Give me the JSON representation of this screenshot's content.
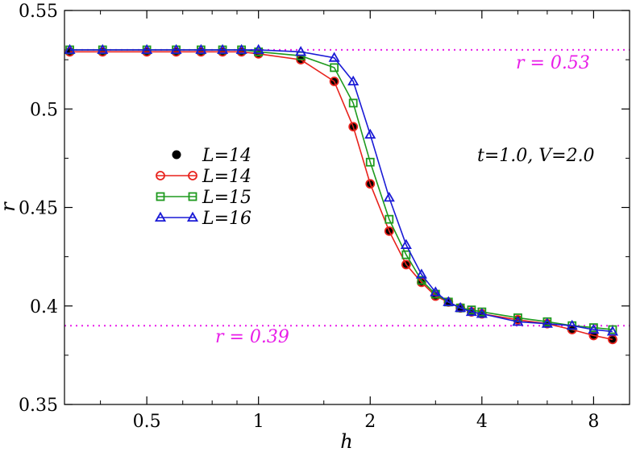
{
  "chart_data": {
    "type": "line",
    "xlabel": "h",
    "ylabel": "r",
    "xscale": "log2",
    "xlim": [
      0.3,
      10.0
    ],
    "ylim": [
      0.35,
      0.55
    ],
    "xticks": [
      {
        "value": 0.5,
        "label": "0.5"
      },
      {
        "value": 1,
        "label": "1"
      },
      {
        "value": 2,
        "label": "2"
      },
      {
        "value": 4,
        "label": "4"
      },
      {
        "value": 8,
        "label": "8"
      }
    ],
    "yticks": [
      {
        "value": 0.35,
        "label": "0.35"
      },
      {
        "value": 0.4,
        "label": "0.4"
      },
      {
        "value": 0.45,
        "label": "0.45"
      },
      {
        "value": 0.5,
        "label": "0.5"
      },
      {
        "value": 0.55,
        "label": "0.55"
      }
    ],
    "legend_position": "left-center",
    "series": [
      {
        "name": "L=14",
        "color": "#000000",
        "marker": "filled-circle",
        "line": false,
        "x": [
          0.31,
          0.38,
          0.5,
          0.6,
          0.7,
          0.8,
          0.9,
          1.0,
          1.3,
          1.6,
          1.8,
          2.0,
          2.25,
          2.5,
          2.75,
          3.0,
          3.25,
          3.5,
          3.75,
          4.0,
          5.0,
          6.0,
          7.0,
          8.0,
          9.0
        ],
        "y": [
          0.529,
          0.529,
          0.529,
          0.529,
          0.529,
          0.529,
          0.529,
          0.528,
          0.525,
          0.514,
          0.491,
          0.462,
          0.438,
          0.421,
          0.412,
          0.405,
          0.402,
          0.399,
          0.397,
          0.396,
          0.393,
          0.391,
          0.388,
          0.385,
          0.383
        ]
      },
      {
        "name": "L=14",
        "color": "#e8221c",
        "marker": "open-circle",
        "line": true,
        "x": [
          0.31,
          0.38,
          0.5,
          0.6,
          0.7,
          0.8,
          0.9,
          1.0,
          1.3,
          1.6,
          1.8,
          2.0,
          2.25,
          2.5,
          2.75,
          3.0,
          3.25,
          3.5,
          3.75,
          4.0,
          5.0,
          6.0,
          7.0,
          8.0,
          9.0
        ],
        "y": [
          0.529,
          0.529,
          0.529,
          0.529,
          0.529,
          0.529,
          0.529,
          0.528,
          0.525,
          0.514,
          0.491,
          0.462,
          0.438,
          0.421,
          0.412,
          0.405,
          0.402,
          0.399,
          0.397,
          0.396,
          0.393,
          0.391,
          0.388,
          0.385,
          0.383
        ]
      },
      {
        "name": "L=15",
        "color": "#1e9a1e",
        "marker": "open-square",
        "line": true,
        "x": [
          0.31,
          0.38,
          0.5,
          0.6,
          0.7,
          0.8,
          0.9,
          1.0,
          1.3,
          1.6,
          1.8,
          2.0,
          2.25,
          2.5,
          2.75,
          3.0,
          3.25,
          3.5,
          3.75,
          4.0,
          5.0,
          6.0,
          7.0,
          8.0,
          9.0
        ],
        "y": [
          0.53,
          0.53,
          0.53,
          0.53,
          0.53,
          0.53,
          0.53,
          0.529,
          0.527,
          0.521,
          0.503,
          0.473,
          0.444,
          0.426,
          0.413,
          0.406,
          0.402,
          0.399,
          0.398,
          0.397,
          0.394,
          0.392,
          0.39,
          0.389,
          0.388
        ]
      },
      {
        "name": "L=16",
        "color": "#1a1ad6",
        "marker": "open-triangle",
        "line": true,
        "x": [
          0.31,
          0.38,
          0.5,
          0.6,
          0.7,
          0.8,
          0.9,
          1.0,
          1.3,
          1.6,
          1.8,
          2.0,
          2.25,
          2.5,
          2.75,
          3.0,
          3.25,
          3.5,
          3.75,
          4.0,
          5.0,
          6.0,
          7.0,
          8.0,
          9.0
        ],
        "y": [
          0.53,
          0.53,
          0.53,
          0.53,
          0.53,
          0.53,
          0.53,
          0.53,
          0.529,
          0.526,
          0.514,
          0.487,
          0.455,
          0.431,
          0.416,
          0.407,
          0.402,
          0.399,
          0.397,
          0.396,
          0.392,
          0.391,
          0.39,
          0.388,
          0.387
        ]
      }
    ],
    "reference_lines": [
      {
        "y": 0.53,
        "label": "r = 0.53",
        "color": "#e81ee8"
      },
      {
        "y": 0.39,
        "label": "r = 0.39",
        "color": "#e81ee8"
      }
    ],
    "annotation": "t=1.0, V=2.0"
  }
}
